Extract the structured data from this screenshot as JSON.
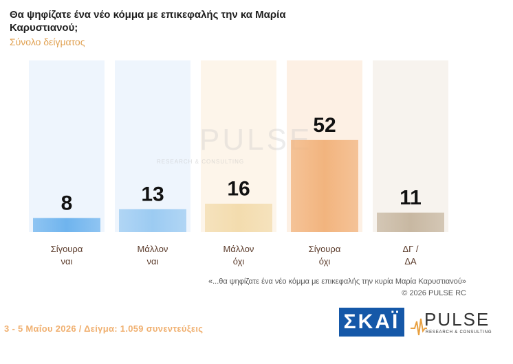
{
  "header": {
    "title": "Θα ψηφίζατε ένα νέο κόμμα με επικεφαλής την κα Μαρία Καρυστιανού;",
    "subtitle": "Σύνολο δείγματος"
  },
  "chart_data": {
    "type": "bar",
    "categories": [
      [
        "Σίγουρα",
        "ναι"
      ],
      [
        "Μάλλον",
        "ναι"
      ],
      [
        "Μάλλον",
        "όχι"
      ],
      [
        "Σίγουρα",
        "όχι"
      ],
      [
        "ΔΓ /",
        "ΔΑ"
      ]
    ],
    "values": [
      8,
      13,
      16,
      52,
      11
    ],
    "colors": [
      "#6fb4ee",
      "#9ccbf2",
      "#f3dcae",
      "#f2b47e",
      "#c8b8a2"
    ],
    "ylim": [
      0,
      100
    ],
    "grid": false,
    "legend": "none"
  },
  "watermark": {
    "word": "PULSE",
    "sub": "RESEARCH & CONSULTING"
  },
  "notes": {
    "quote": "«...θα ψηφίζατε ένα νέο κόμμα με επικεφαλής την κυρία Μαρία Καρυστιανού»",
    "copyright": "© 2026 PULSE RC"
  },
  "footer": {
    "text": "3 - 5 Μαΐου 2026 / Δείγμα: 1.059 συνεντεύξεις"
  },
  "logos": {
    "skai": "ΣΚΑΪ",
    "pulse_word": "PULSE",
    "pulse_sub": "RESEARCH & CONSULTING"
  }
}
